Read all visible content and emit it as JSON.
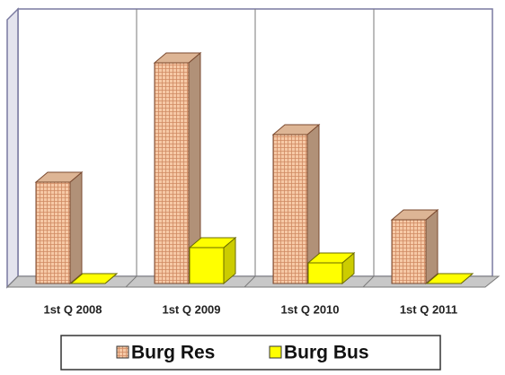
{
  "chart_data": {
    "type": "bar3d",
    "categories": [
      "1st Q 2008",
      "1st Q 2009",
      "1st Q 2010",
      "1st Q 2011"
    ],
    "series": [
      {
        "name": "Burg Res",
        "color": "#f6c9a6",
        "values": [
          113,
          246,
          166,
          71
        ]
      },
      {
        "name": "Burg Bus",
        "color": "#ffff00",
        "values": [
          0,
          40,
          23,
          0
        ]
      }
    ],
    "ylim": [
      0,
      300
    ]
  }
}
